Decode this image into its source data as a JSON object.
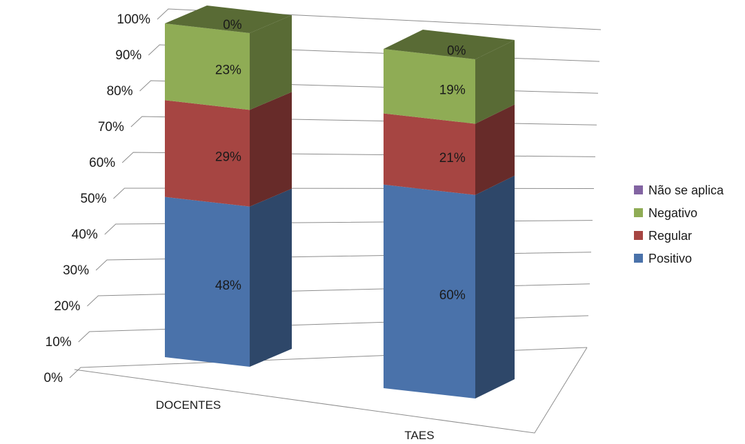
{
  "chart_data": {
    "type": "bar",
    "stacked": true,
    "three_d": true,
    "categories": [
      "DOCENTES",
      "TAES"
    ],
    "series": [
      {
        "name": "Positivo",
        "values": [
          48,
          60
        ],
        "labels": [
          "48%",
          "60%"
        ]
      },
      {
        "name": "Regular",
        "values": [
          29,
          21
        ],
        "labels": [
          "29%",
          "21%"
        ]
      },
      {
        "name": "Negativo",
        "values": [
          23,
          19
        ],
        "labels": [
          "23%",
          "19%"
        ]
      },
      {
        "name": "Não se aplica",
        "values": [
          0,
          0
        ],
        "labels": [
          "0%",
          "0%"
        ]
      }
    ],
    "yticks": [
      "0%",
      "10%",
      "20%",
      "30%",
      "40%",
      "50%",
      "60%",
      "70%",
      "80%",
      "90%",
      "100%"
    ],
    "ylim": [
      0,
      100
    ],
    "grid": true,
    "legend": {
      "position": "right",
      "order": [
        "Não se aplica",
        "Negativo",
        "Regular",
        "Positivo"
      ]
    },
    "colors": {
      "Positivo": "#4a72aa",
      "Regular": "#a64542",
      "Negativo": "#8fac55",
      "Não se aplica": "#8264a2"
    }
  }
}
